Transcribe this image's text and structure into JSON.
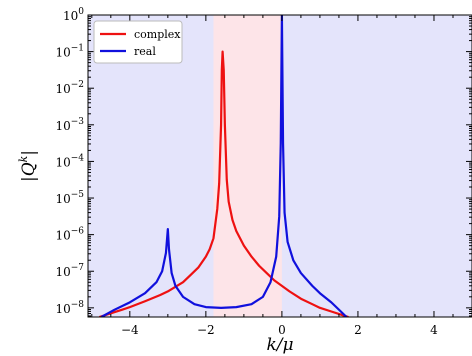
{
  "chart_data": {
    "type": "line",
    "xlabel": "k/μ",
    "ylabel": "|Q^k|",
    "xlim": [
      -5.1,
      5.0
    ],
    "ylim_log10": [
      -8.25,
      0
    ],
    "y_scale": "log",
    "grid": false,
    "legend_position": "top-left",
    "x_ticks": [
      -4,
      -2,
      0,
      2,
      4
    ],
    "x_tick_labels": [
      "−4",
      "−2",
      "0",
      "2",
      "4"
    ],
    "y_ticks_log10": [
      0,
      -1,
      -2,
      -3,
      -4,
      -5,
      -6,
      -7,
      -8
    ],
    "y_tick_labels": [
      "10^0",
      "10^−1",
      "10^−2",
      "10^−3",
      "10^−4",
      "10^−5",
      "10^−6",
      "10^−7",
      "10^−8"
    ],
    "shaded_regions": [
      {
        "x_from": -5.1,
        "x_to": 5.0,
        "color": "#e4e4fb"
      },
      {
        "x_from": -1.8,
        "x_to": 0.0,
        "color": "#fde4e8"
      }
    ],
    "series": [
      {
        "name": "complex",
        "color": "#ee1111",
        "points": [
          [
            -4.8,
            -8.25
          ],
          [
            -4.5,
            -8.15
          ],
          [
            -4.2,
            -8.05
          ],
          [
            -4.0,
            -7.98
          ],
          [
            -3.6,
            -7.82
          ],
          [
            -3.2,
            -7.65
          ],
          [
            -3.0,
            -7.55
          ],
          [
            -2.6,
            -7.3
          ],
          [
            -2.4,
            -7.1
          ],
          [
            -2.2,
            -6.9
          ],
          [
            -2.0,
            -6.6
          ],
          [
            -1.9,
            -6.4
          ],
          [
            -1.8,
            -6.1
          ],
          [
            -1.7,
            -5.3
          ],
          [
            -1.65,
            -4.6
          ],
          [
            -1.6,
            -3.0
          ],
          [
            -1.58,
            -1.5
          ],
          [
            -1.56,
            -1.0
          ],
          [
            -1.53,
            -1.5
          ],
          [
            -1.5,
            -3.0
          ],
          [
            -1.45,
            -4.5
          ],
          [
            -1.4,
            -5.1
          ],
          [
            -1.3,
            -5.6
          ],
          [
            -1.2,
            -5.9
          ],
          [
            -1.0,
            -6.3
          ],
          [
            -0.8,
            -6.6
          ],
          [
            -0.6,
            -6.85
          ],
          [
            -0.4,
            -7.05
          ],
          [
            -0.2,
            -7.25
          ],
          [
            0.0,
            -7.4
          ],
          [
            0.2,
            -7.55
          ],
          [
            0.5,
            -7.75
          ],
          [
            0.8,
            -7.9
          ],
          [
            1.0,
            -8.0
          ],
          [
            1.3,
            -8.1
          ],
          [
            1.6,
            -8.2
          ],
          [
            1.75,
            -8.25
          ]
        ]
      },
      {
        "name": "real",
        "color": "#1010dd",
        "points": [
          [
            -4.75,
            -8.25
          ],
          [
            -4.4,
            -8.05
          ],
          [
            -4.0,
            -7.85
          ],
          [
            -3.6,
            -7.6
          ],
          [
            -3.3,
            -7.3
          ],
          [
            -3.15,
            -7.0
          ],
          [
            -3.05,
            -6.5
          ],
          [
            -3.0,
            -5.85
          ],
          [
            -2.97,
            -6.4
          ],
          [
            -2.9,
            -7.05
          ],
          [
            -2.8,
            -7.4
          ],
          [
            -2.6,
            -7.7
          ],
          [
            -2.3,
            -7.9
          ],
          [
            -2.0,
            -7.98
          ],
          [
            -1.6,
            -8.0
          ],
          [
            -1.2,
            -7.98
          ],
          [
            -0.8,
            -7.9
          ],
          [
            -0.5,
            -7.7
          ],
          [
            -0.3,
            -7.3
          ],
          [
            -0.15,
            -6.6
          ],
          [
            -0.07,
            -5.5
          ],
          [
            -0.03,
            -3.5
          ],
          [
            0.0,
            0.0
          ],
          [
            0.03,
            -3.5
          ],
          [
            0.07,
            -5.4
          ],
          [
            0.15,
            -6.2
          ],
          [
            0.3,
            -6.7
          ],
          [
            0.5,
            -7.05
          ],
          [
            0.8,
            -7.4
          ],
          [
            1.0,
            -7.6
          ],
          [
            1.3,
            -7.85
          ],
          [
            1.55,
            -8.1
          ],
          [
            1.7,
            -8.25
          ]
        ]
      }
    ]
  }
}
